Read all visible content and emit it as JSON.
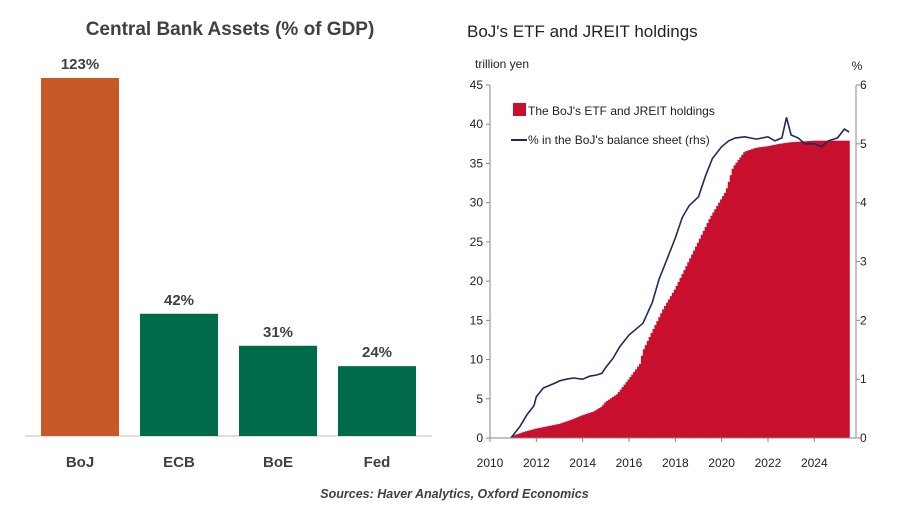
{
  "chart_data": [
    {
      "type": "bar",
      "title": "Central Bank Assets (% of GDP)",
      "categories": [
        "BoJ",
        "ECB",
        "BoE",
        "Fed"
      ],
      "values": [
        123,
        42,
        31,
        24
      ],
      "value_labels": [
        "123%",
        "42%",
        "31%",
        "24%"
      ],
      "colors": [
        "#C65726",
        "#006B4A",
        "#006B4A",
        "#006B4A"
      ],
      "ylim": [
        0,
        130
      ],
      "xlabel": "",
      "ylabel": ""
    },
    {
      "type": "bar+line",
      "title": "BoJ's ETF and JREIT holdings",
      "ylabel_left": "trillion yen",
      "ylabel_right": "%",
      "ylim_left": [
        0,
        45
      ],
      "ylim_right": [
        0,
        6
      ],
      "yticks_left": [
        "0",
        "5",
        "10",
        "15",
        "20",
        "25",
        "30",
        "35",
        "40",
        "45"
      ],
      "yticks_right": [
        "0",
        "1",
        "2",
        "3",
        "4",
        "5",
        "6"
      ],
      "xlim": [
        2010,
        2025.8
      ],
      "xticks": [
        "2010",
        "2012",
        "2014",
        "2016",
        "2018",
        "2020",
        "2022",
        "2024"
      ],
      "legend": [
        "The BoJ's ETF and JREIT holdings",
        "% in the BoJ's balance sheet (rhs)"
      ],
      "bar_color": "#C8102E",
      "line_color": "#1F2A5C",
      "series": [
        {
          "name": "The BoJ's ETF and JREIT holdings",
          "axis": "left",
          "x": [
            2010.9,
            2011.0,
            2011.5,
            2012.0,
            2012.5,
            2013.0,
            2013.5,
            2014.0,
            2014.5,
            2014.83,
            2015.0,
            2015.5,
            2016.0,
            2016.5,
            2016.6,
            2017.0,
            2017.5,
            2018.0,
            2018.5,
            2019.0,
            2019.5,
            2020.0,
            2020.2,
            2020.5,
            2021.0,
            2021.5,
            2022.0,
            2022.5,
            2023.0,
            2023.5,
            2024.0,
            2024.5,
            2025.0,
            2025.5
          ],
          "y": [
            0.0,
            0.3,
            0.8,
            1.2,
            1.5,
            1.8,
            2.3,
            2.9,
            3.4,
            4.0,
            4.6,
            5.6,
            7.5,
            9.5,
            11.0,
            13.5,
            16.5,
            19.0,
            22.0,
            25.0,
            28.0,
            30.5,
            31.5,
            34.5,
            36.5,
            37.0,
            37.2,
            37.5,
            37.7,
            37.8,
            37.9,
            37.9,
            37.9,
            37.9
          ]
        },
        {
          "name": "% in the BoJ's balance sheet (rhs)",
          "axis": "right",
          "x": [
            2010.9,
            2011.0,
            2011.3,
            2011.6,
            2011.9,
            2012.0,
            2012.3,
            2012.6,
            2012.9,
            2013.0,
            2013.3,
            2013.6,
            2014.0,
            2014.3,
            2014.6,
            2014.83,
            2015.0,
            2015.3,
            2015.6,
            2016.0,
            2016.3,
            2016.6,
            2017.0,
            2017.3,
            2017.6,
            2018.0,
            2018.3,
            2018.6,
            2019.0,
            2019.3,
            2019.6,
            2020.0,
            2020.3,
            2020.6,
            2021.0,
            2021.5,
            2022.0,
            2022.3,
            2022.6,
            2022.8,
            2023.0,
            2023.3,
            2023.6,
            2024.0,
            2024.3,
            2024.6,
            2025.0,
            2025.3,
            2025.5
          ],
          "y": [
            0.0,
            0.05,
            0.2,
            0.4,
            0.55,
            0.7,
            0.85,
            0.9,
            0.95,
            0.97,
            1.0,
            1.02,
            1.0,
            1.05,
            1.07,
            1.1,
            1.2,
            1.35,
            1.55,
            1.75,
            1.85,
            1.95,
            2.3,
            2.7,
            3.0,
            3.4,
            3.75,
            3.95,
            4.1,
            4.45,
            4.75,
            4.95,
            5.05,
            5.1,
            5.12,
            5.08,
            5.12,
            5.05,
            5.1,
            5.45,
            5.15,
            5.1,
            5.0,
            5.0,
            4.95,
            5.05,
            5.1,
            5.25,
            5.2
          ]
        }
      ]
    }
  ],
  "footer": {
    "source": "Sources: Haver Analytics, Oxford Economics"
  }
}
